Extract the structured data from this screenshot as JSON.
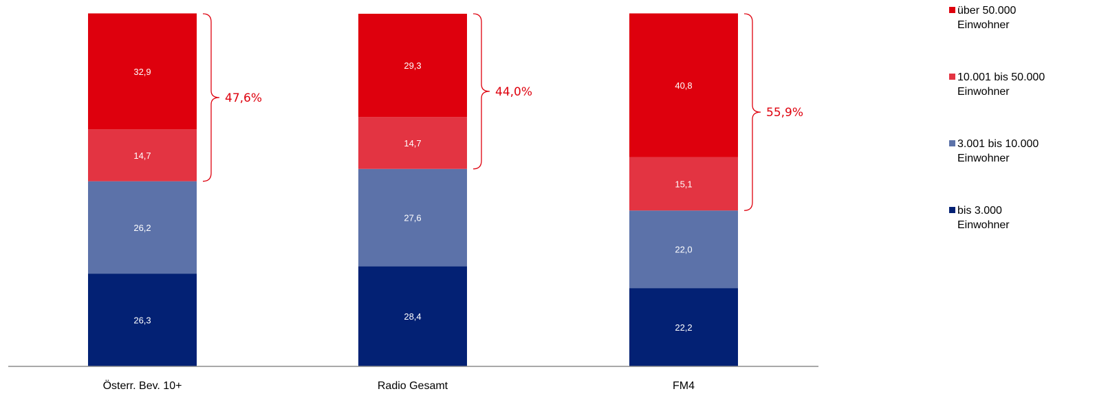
{
  "chart_data": {
    "type": "bar",
    "stacked": true,
    "categories": [
      "Österr. Bev. 10+",
      "Radio Gesamt",
      "FM4"
    ],
    "series": [
      {
        "name": "bis 3.000 Einwohner",
        "line1": "bis 3.000",
        "line2": "Einwohner",
        "color": "#032174",
        "values": [
          26.3,
          28.4,
          22.2
        ],
        "labels": [
          "26,3",
          "28,4",
          "22,2"
        ]
      },
      {
        "name": "3.001 bis 10.000 Einwohner",
        "line1": "3.001 bis 10.000",
        "line2": "Einwohner",
        "color": "#5c72a9",
        "values": [
          26.2,
          27.6,
          22.0
        ],
        "labels": [
          "26,2",
          "27,6",
          "22,0"
        ]
      },
      {
        "name": "10.001 bis 50.000 Einwohner",
        "line1": "10.001 bis 50.000",
        "line2": "Einwohner",
        "color": "#e33442",
        "values": [
          14.7,
          14.7,
          15.1
        ],
        "labels": [
          "14,7",
          "14,7",
          "15,1"
        ]
      },
      {
        "name": "über 50.000 Einwohner",
        "line1": "über 50.000",
        "line2": "Einwohner",
        "color": "#de000d",
        "values": [
          32.9,
          29.3,
          40.8
        ],
        "labels": [
          "32,9",
          "29,3",
          "40,8"
        ]
      }
    ],
    "brace_labels": [
      "47,6%",
      "44,0%",
      "55,9%"
    ],
    "brace_color": "#de000d",
    "ylim": [
      0,
      100
    ],
    "grid": false,
    "legend": "right",
    "legend_order": "top-to-bottom reversed"
  }
}
